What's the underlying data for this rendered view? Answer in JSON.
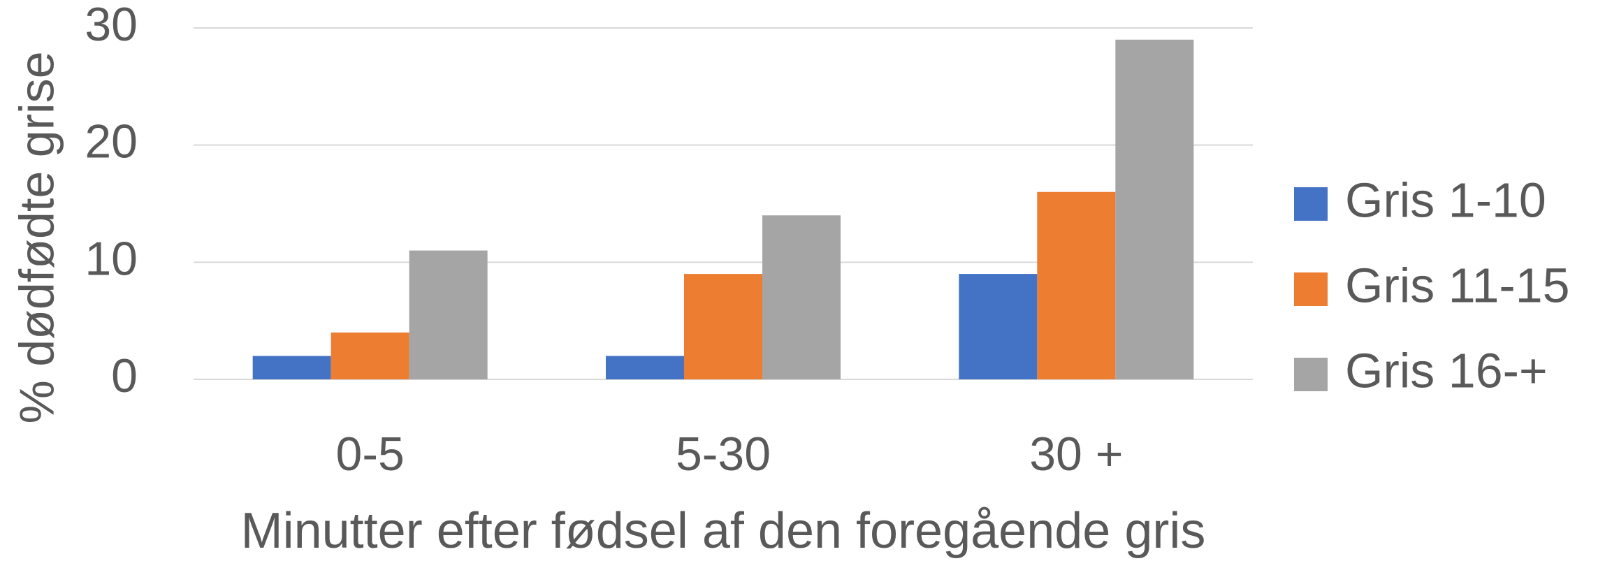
{
  "chart_data": {
    "type": "bar",
    "x_label": "Minutter efter fødsel af den foregående gris",
    "y_label": "% dødfødte grise",
    "categories": [
      "0-5",
      "5-30",
      "30 +"
    ],
    "series": [
      {
        "name": "Gris 1-10",
        "color": "#4472c4",
        "values": [
          2,
          2,
          9
        ]
      },
      {
        "name": "Gris 11-15",
        "color": "#ed7d31",
        "values": [
          4,
          9,
          16
        ]
      },
      {
        "name": "Gris 16-+",
        "color": "#a5a5a5",
        "values": [
          11,
          14,
          29
        ]
      }
    ],
    "ylim": [
      0,
      30
    ],
    "yticks": [
      0,
      10,
      20,
      30
    ],
    "grid": true,
    "legend": "right"
  }
}
